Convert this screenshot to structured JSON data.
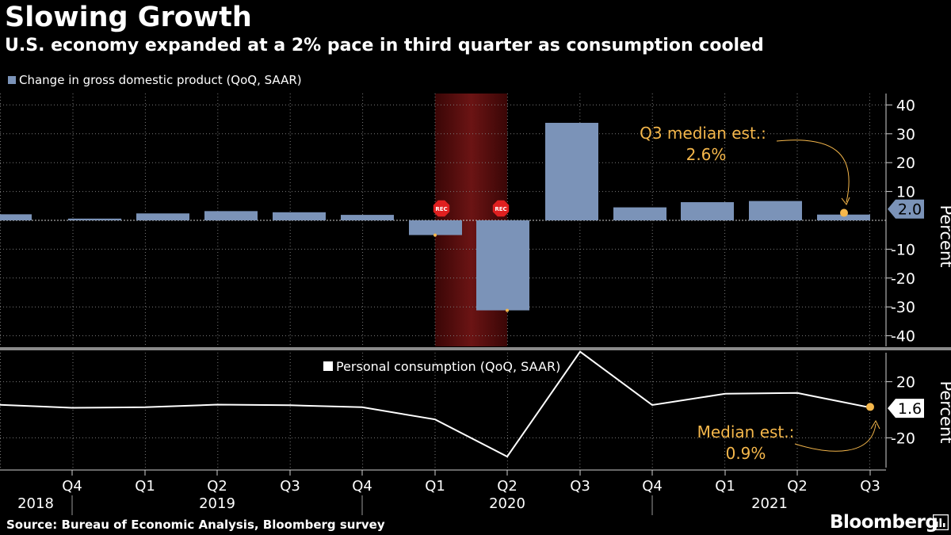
{
  "header": {
    "title": "Slowing Growth",
    "subtitle": "U.S. economy expanded at a 2% pace in third quarter as consumption cooled"
  },
  "footer": {
    "source": "Source: Bureau of Economic Analysis, Bloomberg survey",
    "brand": "Bloomberg"
  },
  "colors": {
    "bar": "#7b93b8",
    "annotation": "#f5b74b",
    "recession": "#5a0f0f",
    "grid": "#7a7a7a",
    "line": "#ffffff"
  },
  "chart_data": [
    {
      "type": "bar",
      "legend": "Change in gross domestic product (QoQ, SAAR)",
      "categories": [
        "2018 Q3",
        "2018 Q4",
        "2019 Q1",
        "2019 Q2",
        "2019 Q3",
        "2019 Q4",
        "2020 Q1",
        "2020 Q2",
        "2020 Q3",
        "2020 Q4",
        "2021 Q1",
        "2021 Q2",
        "2021 Q3"
      ],
      "values": [
        2.1,
        0.6,
        2.4,
        3.2,
        2.8,
        1.9,
        -5.1,
        -31.2,
        33.8,
        4.5,
        6.3,
        6.7,
        2.0
      ],
      "ylim": [
        -45,
        45
      ],
      "yticks": [
        "40",
        "30",
        "20",
        "10",
        "-10",
        "-20",
        "-30",
        "-40"
      ],
      "ylabel": "Percent",
      "last_value_label": "2.0",
      "recession_shading": [
        "2020 Q1",
        "2020 Q2"
      ],
      "recession_marker": "REC",
      "annotation": {
        "text_line1": "Q3 median est.:",
        "text_line2": "2.6%",
        "value": 2.6
      }
    },
    {
      "type": "line",
      "legend": "Personal consumption (QoQ, SAAR)",
      "categories": [
        "2018 Q3",
        "2018 Q4",
        "2019 Q1",
        "2019 Q2",
        "2019 Q3",
        "2019 Q4",
        "2020 Q1",
        "2020 Q2",
        "2020 Q3",
        "2020 Q4",
        "2021 Q1",
        "2021 Q2",
        "2021 Q3"
      ],
      "values": [
        3.5,
        1.4,
        1.8,
        3.7,
        3.2,
        1.8,
        -6.9,
        -33.4,
        41.4,
        3.4,
        11.4,
        12.0,
        1.6
      ],
      "ylim": [
        -45,
        45
      ],
      "yticks": [
        "20",
        "-20"
      ],
      "ylabel": "Percent",
      "last_value_label": "1.6",
      "annotation": {
        "text_line1": "Median est.:",
        "text_line2": "0.9%",
        "value": 0.9
      }
    }
  ],
  "x_axis": {
    "quarter_labels": [
      "Q4",
      "Q1",
      "Q2",
      "Q3",
      "Q4",
      "Q1",
      "Q2",
      "Q3",
      "Q4",
      "Q1",
      "Q2",
      "Q3"
    ],
    "year_labels": [
      "2018",
      "2019",
      "2020",
      "2021"
    ]
  }
}
